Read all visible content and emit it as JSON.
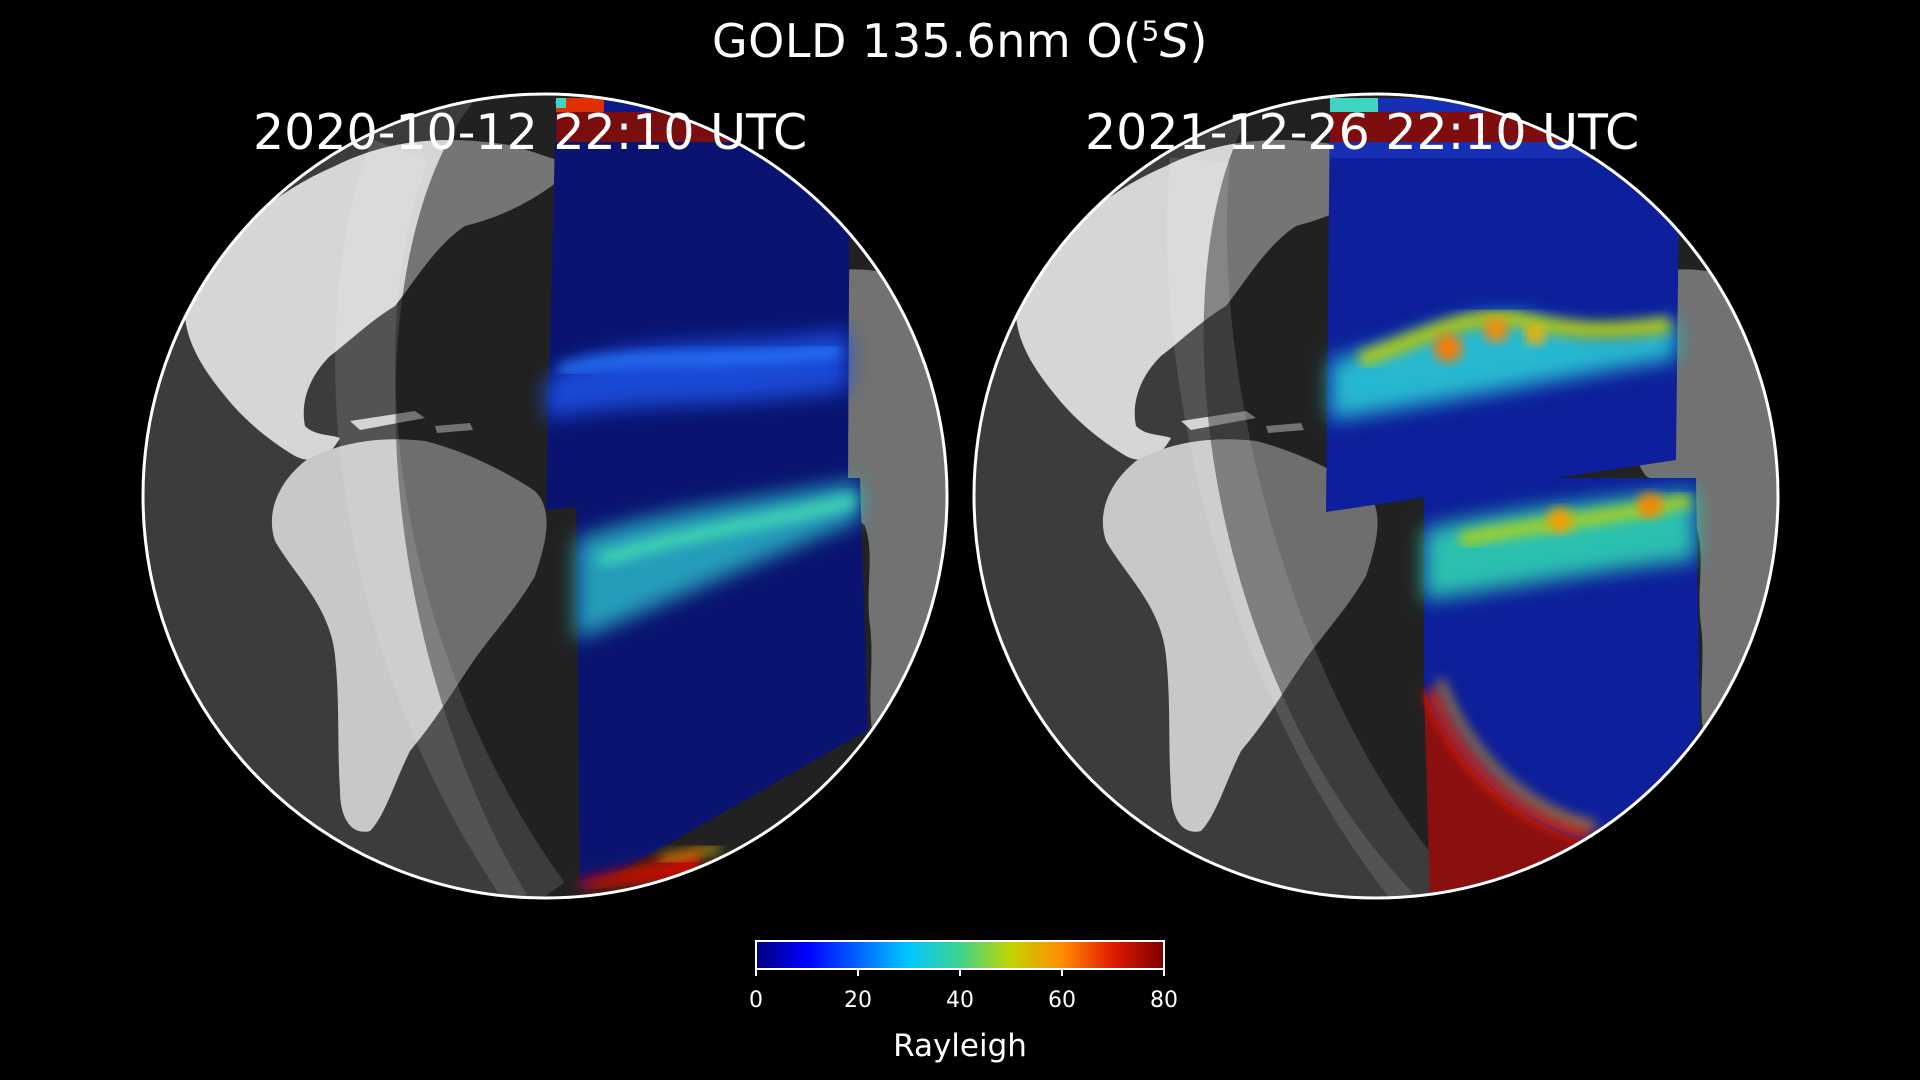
{
  "title": {
    "main": "GOLD 135.6nm O(",
    "superscript": "5",
    "italic": "S",
    "close": ")"
  },
  "panels": [
    {
      "timestamp": "2020-10-12  22:10 UTC",
      "view": "full-disk Earth, Americas / Atlantic",
      "bands": [
        {
          "location": "northern equatorial arc",
          "peak_rayleigh": 20
        },
        {
          "location": "southern equatorial arc",
          "peak_rayleigh": 35
        }
      ],
      "polar_edges_rayleigh": 75
    },
    {
      "timestamp": "2021-12-26  22:10 UTC",
      "view": "full-disk Earth, Americas / Atlantic",
      "bands": [
        {
          "location": "northern equatorial arc",
          "peak_rayleigh": 65
        },
        {
          "location": "southern equatorial arc",
          "peak_rayleigh": 55
        }
      ],
      "polar_edges_rayleigh": 80
    }
  ],
  "colorbar": {
    "label": "Rayleigh",
    "ticks": [
      "0",
      "20",
      "40",
      "60",
      "80"
    ],
    "min": 0,
    "max": 80,
    "colormap": "jet"
  },
  "colors": {
    "background": "#000000",
    "globe_outline": "#ffffff",
    "ocean": "#3c3c3c",
    "land": "#b8b8b8"
  }
}
